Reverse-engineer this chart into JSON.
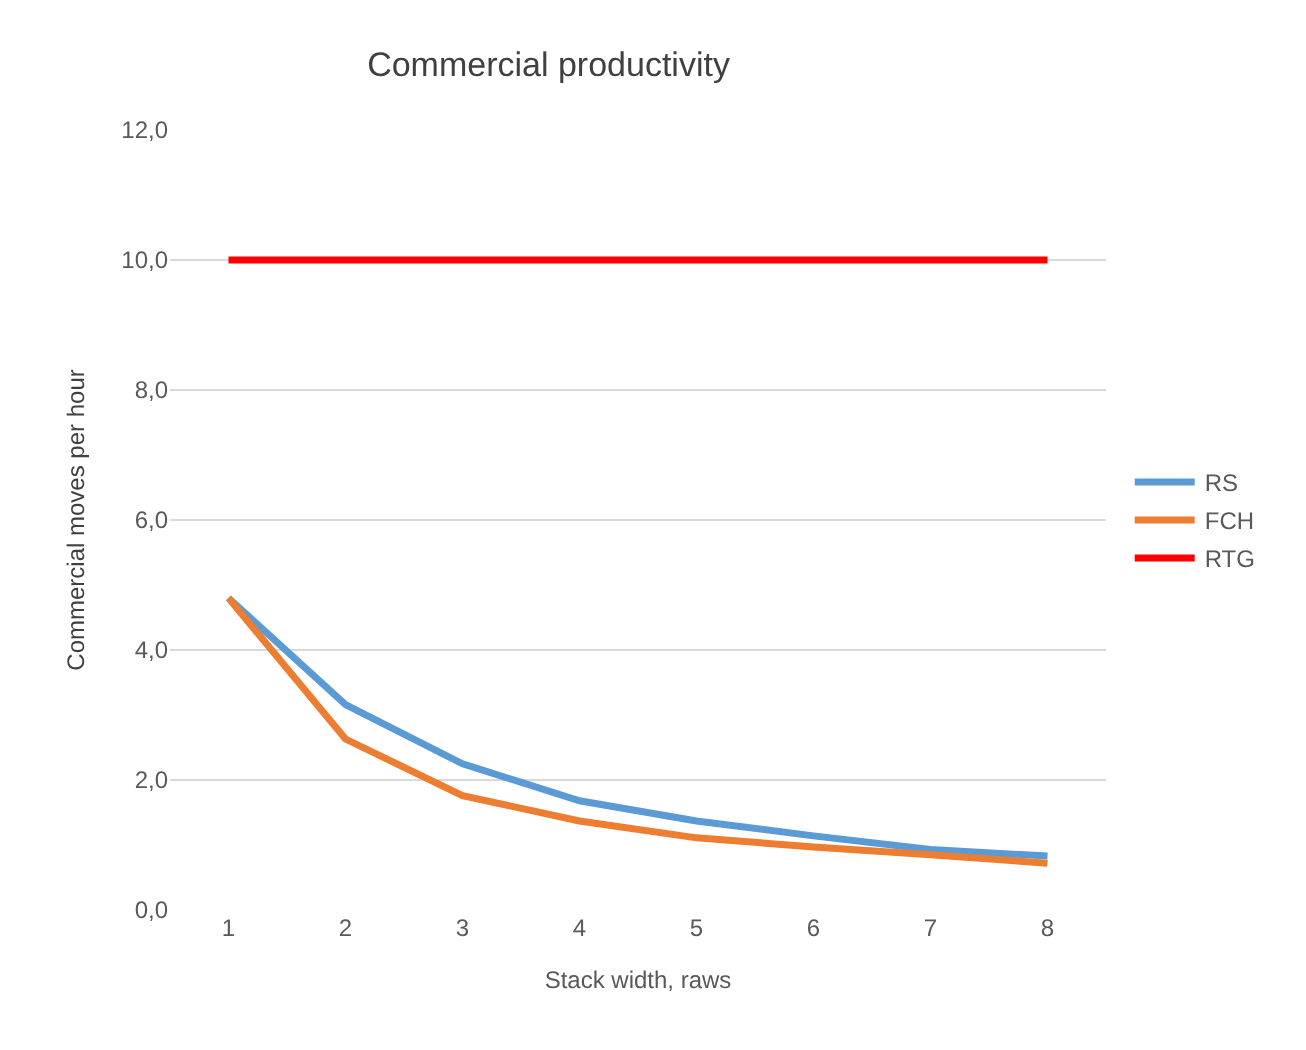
{
  "chart_data": {
    "type": "line",
    "title": "Commercial productivity",
    "xlabel": "Stack width, raws",
    "ylabel": "Commercial moves per hour",
    "categories": [
      "1",
      "2",
      "3",
      "4",
      "5",
      "6",
      "7",
      "8"
    ],
    "series": [
      {
        "name": "RS",
        "color": "#5b9bd5",
        "values": [
          4.8,
          3.16,
          2.25,
          1.68,
          1.37,
          1.14,
          0.93,
          0.83
        ]
      },
      {
        "name": "FCH",
        "color": "#ed7d31",
        "values": [
          4.8,
          2.63,
          1.76,
          1.37,
          1.11,
          0.97,
          0.85,
          0.72
        ]
      },
      {
        "name": "RTG",
        "color": "#ff0000",
        "values": [
          10,
          10,
          10,
          10,
          10,
          10,
          10,
          10
        ]
      }
    ],
    "ylim": [
      0,
      12
    ],
    "yticks": [
      {
        "value": 0,
        "label": "0,0"
      },
      {
        "value": 2,
        "label": "2,0"
      },
      {
        "value": 4,
        "label": "4,0"
      },
      {
        "value": 6,
        "label": "6,0"
      },
      {
        "value": 8,
        "label": "8,0"
      },
      {
        "value": 10,
        "label": "10,0"
      },
      {
        "value": 12,
        "label": "12,0"
      }
    ],
    "grid": "y",
    "legend": "right",
    "marker": "none",
    "line_style": "solid"
  }
}
